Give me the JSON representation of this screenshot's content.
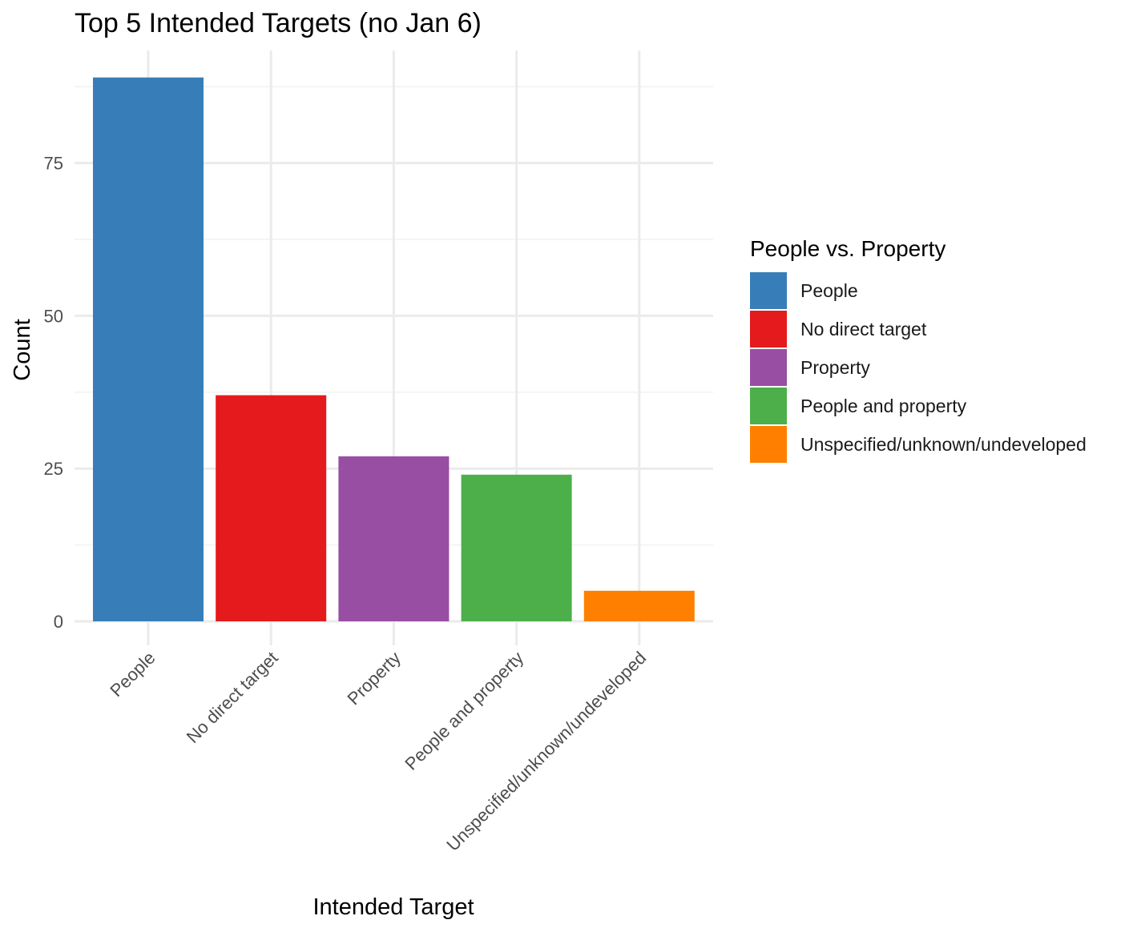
{
  "chart_data": {
    "type": "bar",
    "title": "Top 5 Intended Targets (no Jan 6)",
    "xlabel": "Intended Target",
    "ylabel": "Count",
    "categories": [
      "People",
      "No direct target",
      "Property",
      "People and property",
      "Unspecified/unknown/undeveloped"
    ],
    "values": [
      89,
      37,
      27,
      24,
      5
    ],
    "colors": [
      "#377eb8",
      "#e41a1c",
      "#984ea3",
      "#4daf4a",
      "#ff7f00"
    ],
    "ylim": [
      0,
      93
    ],
    "yticks": [
      0,
      25,
      50,
      75
    ],
    "grid": true,
    "legend": {
      "title": "People vs. Property",
      "position": "right",
      "entries": [
        "People",
        "No direct target",
        "Property",
        "People and property",
        "Unspecified/unknown/undeveloped"
      ]
    }
  }
}
